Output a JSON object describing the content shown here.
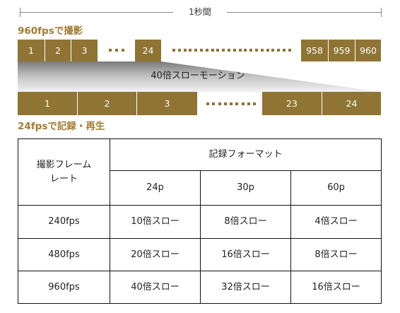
{
  "top_label": "1秒間",
  "capture_label": "960fpsで撮影",
  "capture_frames": [
    "1",
    "2",
    "3",
    "24",
    "958",
    "959",
    "960"
  ],
  "slowmo_label": "40倍スローモーション",
  "playback_frames": [
    "1",
    "2",
    "3",
    "23",
    "24"
  ],
  "playback_label": "24fpsで記録・再生",
  "colors": {
    "gold_cell": "#8f7434",
    "gold_text": "#a37c32"
  },
  "table": {
    "row_header": "撮影フレーム\nレート",
    "format_header": "記録フォーマット",
    "formats": [
      "24p",
      "30p",
      "60p"
    ],
    "rows": [
      {
        "rate": "240fps",
        "values": [
          "10倍スロー",
          "8倍スロー",
          "4倍スロー"
        ]
      },
      {
        "rate": "480fps",
        "values": [
          "20倍スロー",
          "16倍スロー",
          "8倍スロー"
        ]
      },
      {
        "rate": "960fps",
        "values": [
          "40倍スロー",
          "32倍スロー",
          "16倍スロー"
        ]
      }
    ]
  }
}
